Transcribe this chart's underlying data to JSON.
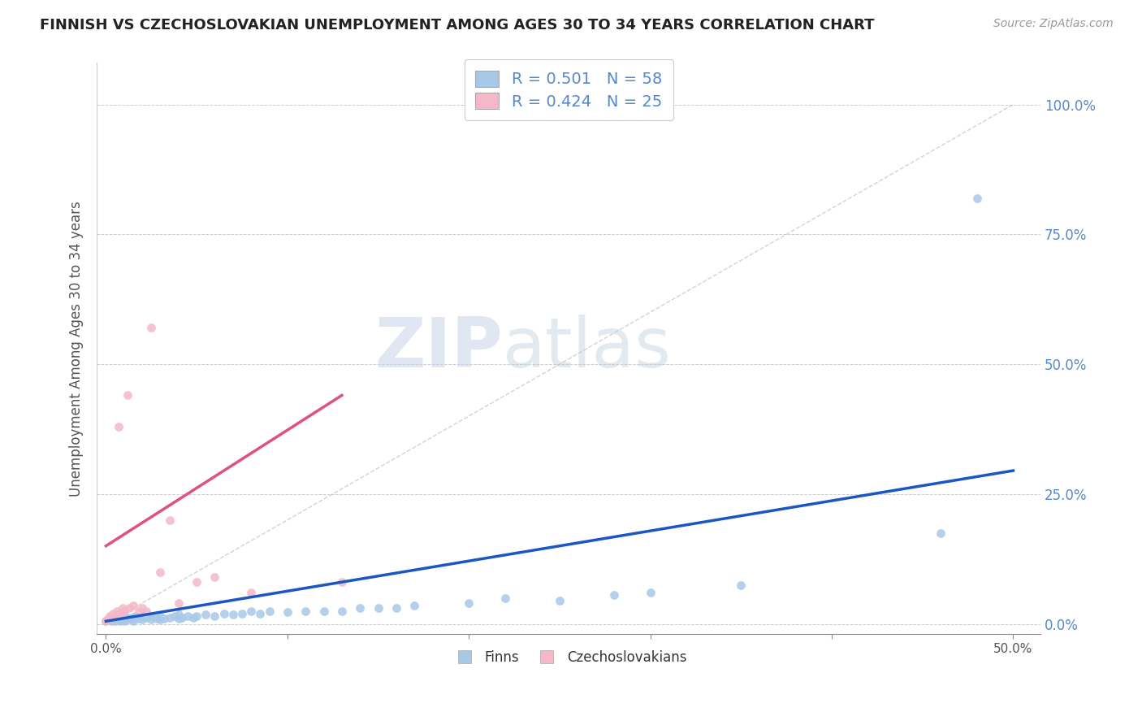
{
  "title": "FINNISH VS CZECHOSLOVAKIAN UNEMPLOYMENT AMONG AGES 30 TO 34 YEARS CORRELATION CHART",
  "source": "Source: ZipAtlas.com",
  "ylabel": "Unemployment Among Ages 30 to 34 years",
  "x_ticks": [
    0.0,
    0.1,
    0.2,
    0.3,
    0.4,
    0.5
  ],
  "x_tick_labels_show": [
    "0.0%",
    "",
    "",
    "",
    "",
    "50.0%"
  ],
  "y_ticks": [
    0.0,
    0.25,
    0.5,
    0.75,
    1.0
  ],
  "y_tick_labels": [
    "0.0%",
    "25.0%",
    "50.0%",
    "75.0%",
    "100.0%"
  ],
  "xlim": [
    -0.005,
    0.515
  ],
  "ylim": [
    -0.02,
    1.08
  ],
  "finn_color": "#a8c8e8",
  "czech_color": "#f4b8c8",
  "finn_line_color": "#1a56c4",
  "czech_line_color": "#e05080",
  "R_finn": 0.501,
  "N_finn": 58,
  "R_czech": 0.424,
  "N_czech": 25,
  "finn_scatter_x": [
    0.0,
    0.002,
    0.003,
    0.004,
    0.005,
    0.005,
    0.007,
    0.008,
    0.008,
    0.009,
    0.01,
    0.01,
    0.012,
    0.013,
    0.015,
    0.015,
    0.016,
    0.018,
    0.02,
    0.022,
    0.025,
    0.025,
    0.028,
    0.03,
    0.03,
    0.032,
    0.035,
    0.038,
    0.04,
    0.04,
    0.042,
    0.045,
    0.048,
    0.05,
    0.055,
    0.06,
    0.065,
    0.07,
    0.075,
    0.08,
    0.085,
    0.09,
    0.1,
    0.11,
    0.12,
    0.13,
    0.14,
    0.15,
    0.16,
    0.17,
    0.2,
    0.22,
    0.25,
    0.28,
    0.3,
    0.35,
    0.46,
    0.48
  ],
  "finn_scatter_y": [
    0.005,
    0.008,
    0.005,
    0.01,
    0.005,
    0.012,
    0.008,
    0.005,
    0.012,
    0.008,
    0.005,
    0.015,
    0.008,
    0.012,
    0.005,
    0.01,
    0.015,
    0.01,
    0.008,
    0.012,
    0.008,
    0.015,
    0.01,
    0.008,
    0.015,
    0.01,
    0.012,
    0.015,
    0.01,
    0.018,
    0.012,
    0.015,
    0.012,
    0.015,
    0.018,
    0.015,
    0.02,
    0.018,
    0.02,
    0.025,
    0.02,
    0.025,
    0.022,
    0.025,
    0.025,
    0.025,
    0.03,
    0.03,
    0.03,
    0.035,
    0.04,
    0.05,
    0.045,
    0.055,
    0.06,
    0.075,
    0.175,
    0.82
  ],
  "czech_scatter_x": [
    0.0,
    0.001,
    0.002,
    0.003,
    0.004,
    0.005,
    0.006,
    0.007,
    0.008,
    0.009,
    0.01,
    0.012,
    0.013,
    0.015,
    0.018,
    0.02,
    0.022,
    0.025,
    0.03,
    0.035,
    0.04,
    0.05,
    0.06,
    0.08,
    0.13
  ],
  "czech_scatter_y": [
    0.005,
    0.01,
    0.015,
    0.01,
    0.02,
    0.015,
    0.025,
    0.38,
    0.02,
    0.03,
    0.025,
    0.44,
    0.03,
    0.035,
    0.025,
    0.03,
    0.025,
    0.57,
    0.1,
    0.2,
    0.04,
    0.08,
    0.09,
    0.06,
    0.08
  ],
  "finn_trend_x": [
    0.0,
    0.5
  ],
  "finn_trend_y": [
    0.005,
    0.295
  ],
  "czech_trend_x": [
    0.0,
    0.13
  ],
  "czech_trend_y": [
    0.15,
    0.44
  ],
  "diag_line_x": [
    0.0,
    0.5
  ],
  "diag_line_y": [
    0.0,
    1.0
  ],
  "watermark_zip": "ZIP",
  "watermark_atlas": "atlas",
  "legend_finn_label": "Finns",
  "legend_czech_label": "Czechoslovakians",
  "grid_color": "#cccccc",
  "background_color": "#ffffff",
  "tick_color": "#aaaaaa",
  "label_color": "#5588cc"
}
